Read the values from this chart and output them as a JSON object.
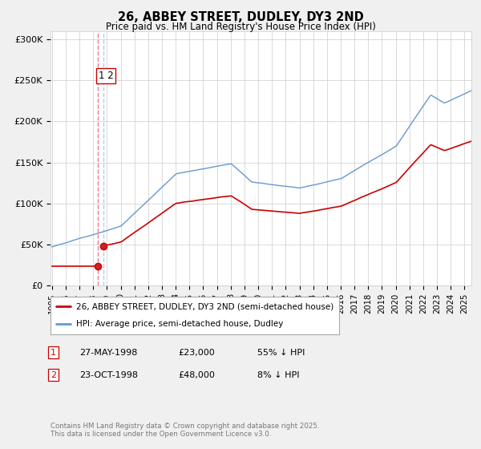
{
  "title": "26, ABBEY STREET, DUDLEY, DY3 2ND",
  "subtitle": "Price paid vs. HM Land Registry's House Price Index (HPI)",
  "ytick_labels": [
    "£0",
    "£50K",
    "£100K",
    "£150K",
    "£200K",
    "£250K",
    "£300K"
  ],
  "yticks": [
    0,
    50000,
    100000,
    150000,
    200000,
    250000,
    300000
  ],
  "ylim": [
    0,
    310000
  ],
  "legend_line1": "26, ABBEY STREET, DUDLEY, DY3 2ND (semi-detached house)",
  "legend_line2": "HPI: Average price, semi-detached house, Dudley",
  "line_color_red": "#cc0000",
  "line_color_blue": "#6699cc",
  "sale1_date": "27-MAY-1998",
  "sale1_price": "£23,000",
  "sale1_hpi": "55% ↓ HPI",
  "sale2_date": "23-OCT-1998",
  "sale2_price": "£48,000",
  "sale2_hpi": "8% ↓ HPI",
  "copyright": "Contains HM Land Registry data © Crown copyright and database right 2025.\nThis data is licensed under the Open Government Licence v3.0.",
  "bg_color": "#f0f0f0",
  "plot_bg_color": "#ffffff"
}
